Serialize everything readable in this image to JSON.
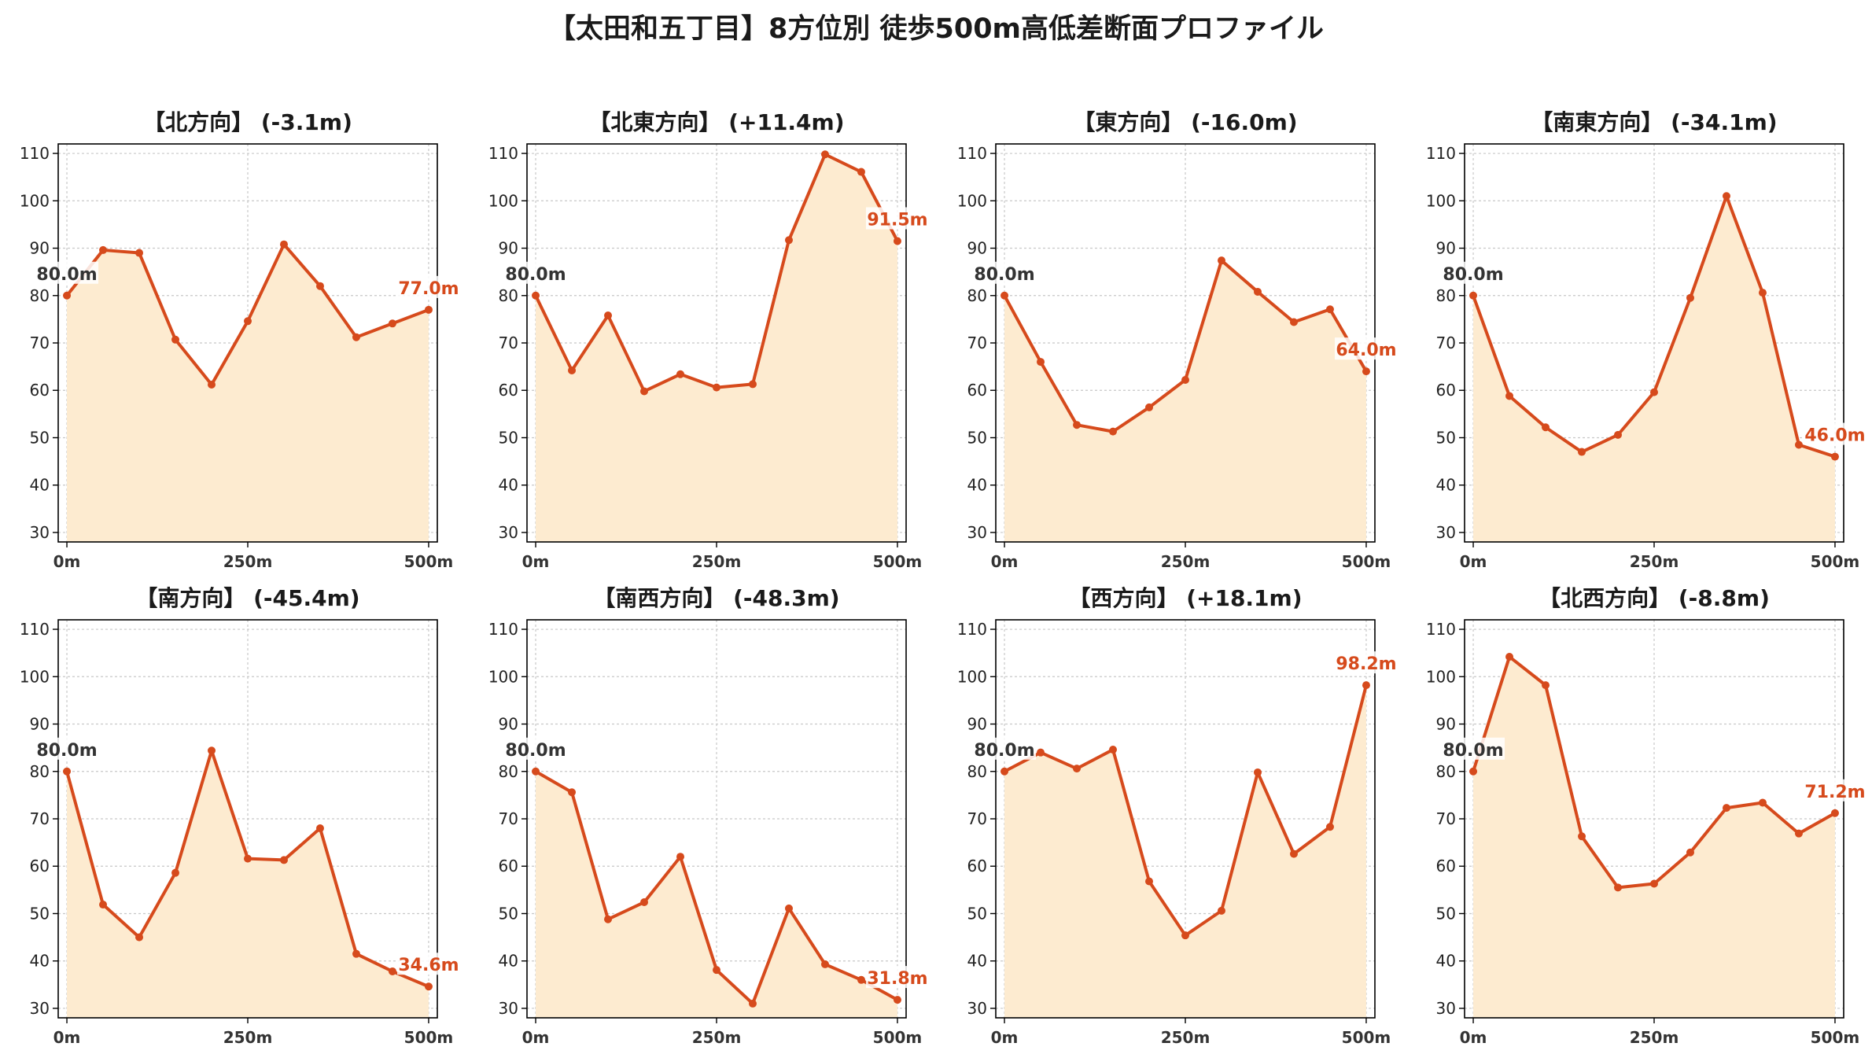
{
  "title": "【太田和五丁目】8方位別 徒歩500m高低差断面プロファイル",
  "colors": {
    "line": "#D64A1C",
    "fill": "#FDEBD0",
    "grid": "#c8c8c8",
    "start_label": "#333333"
  },
  "chart_data": [
    {
      "type": "area",
      "title": "【北方向】 (-3.1m)",
      "x": [
        0,
        50,
        100,
        150,
        200,
        250,
        300,
        350,
        400,
        450,
        500
      ],
      "values": [
        80.0,
        89.6,
        89.0,
        70.7,
        61.2,
        74.6,
        90.8,
        82.0,
        71.2,
        74.1,
        77.0
      ],
      "xticks": [
        "0m",
        "250m",
        "500m"
      ],
      "yticks": [
        30,
        40,
        50,
        60,
        70,
        80,
        90,
        100,
        110
      ],
      "ylim": [
        28,
        112
      ],
      "xlim": [
        -12,
        512
      ],
      "start_label": "80.0m",
      "end_label": "77.0m",
      "grid": true
    },
    {
      "type": "area",
      "title": "【北東方向】 (+11.4m)",
      "x": [
        0,
        50,
        100,
        150,
        200,
        250,
        300,
        350,
        400,
        450,
        500
      ],
      "values": [
        80.0,
        64.2,
        75.8,
        59.8,
        63.4,
        60.6,
        61.3,
        91.7,
        109.8,
        106.1,
        91.5
      ],
      "xticks": [
        "0m",
        "250m",
        "500m"
      ],
      "yticks": [
        30,
        40,
        50,
        60,
        70,
        80,
        90,
        100,
        110
      ],
      "ylim": [
        28,
        112
      ],
      "xlim": [
        -12,
        512
      ],
      "start_label": "80.0m",
      "end_label": "91.5m",
      "grid": true
    },
    {
      "type": "area",
      "title": "【東方向】 (-16.0m)",
      "x": [
        0,
        50,
        100,
        150,
        200,
        250,
        300,
        350,
        400,
        450,
        500
      ],
      "values": [
        80.0,
        66.0,
        52.7,
        51.3,
        56.4,
        62.2,
        87.4,
        80.8,
        74.4,
        77.1,
        64.0
      ],
      "xticks": [
        "0m",
        "250m",
        "500m"
      ],
      "yticks": [
        30,
        40,
        50,
        60,
        70,
        80,
        90,
        100,
        110
      ],
      "ylim": [
        28,
        112
      ],
      "xlim": [
        -12,
        512
      ],
      "start_label": "80.0m",
      "end_label": "64.0m",
      "grid": true
    },
    {
      "type": "area",
      "title": "【南東方向】 (-34.1m)",
      "x": [
        0,
        50,
        100,
        150,
        200,
        250,
        300,
        350,
        400,
        450,
        500
      ],
      "values": [
        80.0,
        58.8,
        52.2,
        47.0,
        50.6,
        59.6,
        79.5,
        101.0,
        80.6,
        48.5,
        46.0
      ],
      "xticks": [
        "0m",
        "250m",
        "500m"
      ],
      "yticks": [
        30,
        40,
        50,
        60,
        70,
        80,
        90,
        100,
        110
      ],
      "ylim": [
        28,
        112
      ],
      "xlim": [
        -12,
        512
      ],
      "start_label": "80.0m",
      "end_label": "46.0m",
      "grid": true
    },
    {
      "type": "area",
      "title": "【南方向】 (-45.4m)",
      "x": [
        0,
        50,
        100,
        150,
        200,
        250,
        300,
        350,
        400,
        450,
        500
      ],
      "values": [
        80.0,
        51.9,
        45.0,
        58.6,
        84.4,
        61.6,
        61.3,
        68.0,
        41.5,
        37.8,
        34.6
      ],
      "xticks": [
        "0m",
        "250m",
        "500m"
      ],
      "yticks": [
        30,
        40,
        50,
        60,
        70,
        80,
        90,
        100,
        110
      ],
      "ylim": [
        28,
        112
      ],
      "xlim": [
        -12,
        512
      ],
      "start_label": "80.0m",
      "end_label": "34.6m",
      "grid": true
    },
    {
      "type": "area",
      "title": "【南西方向】 (-48.3m)",
      "x": [
        0,
        50,
        100,
        150,
        200,
        250,
        300,
        350,
        400,
        450,
        500
      ],
      "values": [
        80.0,
        75.6,
        48.8,
        52.4,
        62.0,
        38.1,
        31.0,
        51.1,
        39.3,
        36.0,
        31.8
      ],
      "xticks": [
        "0m",
        "250m",
        "500m"
      ],
      "yticks": [
        30,
        40,
        50,
        60,
        70,
        80,
        90,
        100,
        110
      ],
      "ylim": [
        28,
        112
      ],
      "xlim": [
        -12,
        512
      ],
      "start_label": "80.0m",
      "end_label": "31.8m",
      "grid": true
    },
    {
      "type": "area",
      "title": "【西方向】 (+18.1m)",
      "x": [
        0,
        50,
        100,
        150,
        200,
        250,
        300,
        350,
        400,
        450,
        500
      ],
      "values": [
        80.0,
        84.0,
        80.6,
        84.6,
        56.8,
        45.4,
        50.6,
        79.8,
        62.6,
        68.3,
        98.2
      ],
      "xticks": [
        "0m",
        "250m",
        "500m"
      ],
      "yticks": [
        30,
        40,
        50,
        60,
        70,
        80,
        90,
        100,
        110
      ],
      "ylim": [
        28,
        112
      ],
      "xlim": [
        -12,
        512
      ],
      "start_label": "80.0m",
      "end_label": "98.2m",
      "grid": true
    },
    {
      "type": "area",
      "title": "【北西方向】 (-8.8m)",
      "x": [
        0,
        50,
        100,
        150,
        200,
        250,
        300,
        350,
        400,
        450,
        500
      ],
      "values": [
        80.0,
        104.2,
        98.2,
        66.3,
        55.5,
        56.3,
        62.9,
        72.3,
        73.4,
        66.9,
        71.2
      ],
      "xticks": [
        "0m",
        "250m",
        "500m"
      ],
      "yticks": [
        30,
        40,
        50,
        60,
        70,
        80,
        90,
        100,
        110
      ],
      "ylim": [
        28,
        112
      ],
      "xlim": [
        -12,
        512
      ],
      "start_label": "80.0m",
      "end_label": "71.2m",
      "grid": true
    }
  ]
}
